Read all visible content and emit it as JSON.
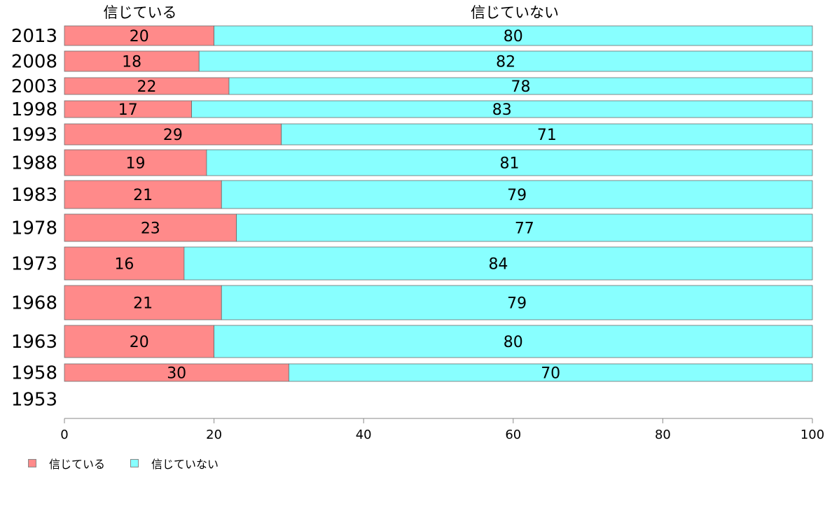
{
  "chart_data": {
    "type": "bar",
    "orientation": "horizontal",
    "stacked": true,
    "categories": [
      "2013",
      "2008",
      "2003",
      "1998",
      "1993",
      "1988",
      "1983",
      "1978",
      "1973",
      "1968",
      "1963",
      "1958",
      "1953"
    ],
    "series": [
      {
        "name": "信じている",
        "color": "#ff8a8a",
        "values": [
          20,
          18,
          22,
          17,
          29,
          19,
          21,
          23,
          16,
          21,
          20,
          30,
          null
        ]
      },
      {
        "name": "信じていない",
        "color": "#88ffff",
        "values": [
          80,
          82,
          78,
          83,
          71,
          81,
          79,
          77,
          84,
          79,
          80,
          70,
          null
        ]
      }
    ],
    "xlim": [
      0,
      100
    ],
    "xticks": [
      0,
      20,
      40,
      60,
      80,
      100
    ],
    "column_headers": [
      "信じている",
      "信じていない"
    ],
    "legend_position": "bottom-left",
    "grid": false
  },
  "legend": {
    "items": [
      {
        "label": "信じている",
        "color": "#ff8a8a"
      },
      {
        "label": "信じていない",
        "color": "#88ffff"
      }
    ]
  }
}
